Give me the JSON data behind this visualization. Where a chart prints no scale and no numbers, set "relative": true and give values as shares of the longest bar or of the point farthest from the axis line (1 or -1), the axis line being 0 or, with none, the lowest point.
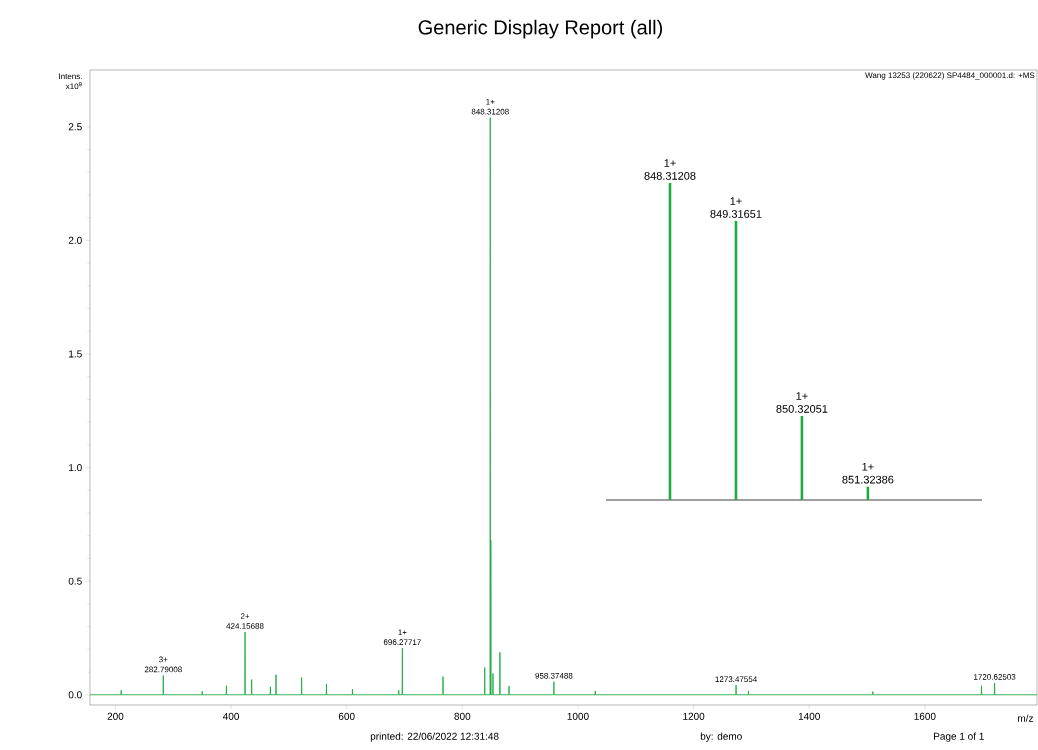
{
  "chart_data": [
    {
      "type": "line",
      "title": "Generic Display Report (all)",
      "xlabel": "m/z",
      "ylabel": "Intens. x10$^{9}$",
      "xlim": [
        156,
        1794
      ],
      "ylim": [
        -0.045,
        2.75
      ],
      "xticks": [
        200,
        400,
        600,
        800,
        1000,
        1200,
        1400,
        1600
      ],
      "yticks": [
        {
          "value": 0,
          "label": "0.0"
        },
        {
          "value": 0.5,
          "label": "0.5"
        },
        {
          "value": 1,
          "label": "1.0"
        },
        {
          "value": 1.5,
          "label": "1.5"
        },
        {
          "value": 2,
          "label": "2.0"
        },
        {
          "value": 2.5,
          "label": "2.5"
        }
      ],
      "series": [
        {
          "color": "#22aa44",
          "x": [
            156,
            209.6,
            210,
            210.4,
            282.39,
            282.79008,
            283.19,
            349.6,
            350,
            350.4,
            391.6,
            392,
            392.4,
            423.76,
            424.15688,
            424.56,
            435.2,
            435.6,
            436,
            467.6,
            468,
            468.4,
            477.3,
            477.7,
            478.1,
            521.6,
            522,
            522.4,
            564.6,
            565,
            565.4,
            609.6,
            610,
            610.4,
            689.6,
            690,
            690.4,
            695.88,
            696.27717,
            696.68,
            766.2,
            766.6,
            767,
            838.3,
            838.7,
            839.1,
            847.91,
            848.31208,
            848.71,
            848.9,
            849.3,
            849.7,
            852.6,
            853,
            853.4,
            864.6,
            865,
            865.4,
            880.4,
            880.8,
            881.2,
            957.97,
            958.37488,
            958.77,
            1029.6,
            1030,
            1030.4,
            1273.08,
            1273.47554,
            1273.88,
            1294.6,
            1295,
            1295.4,
            1509.6,
            1510,
            1510.4,
            1697.6,
            1698,
            1698.4,
            1720.23,
            1720.62503,
            1721.03,
            1794
          ],
          "values": [
            0,
            0,
            0.02,
            0,
            0,
            0.085,
            0,
            0,
            0.015,
            0,
            0,
            0.04,
            0,
            0,
            0.276,
            0,
            0,
            0.067,
            0,
            0,
            0.035,
            0,
            0,
            0.088,
            0,
            0,
            0.076,
            0,
            0,
            0.048,
            0,
            0,
            0.025,
            0,
            0,
            0.02,
            0,
            0,
            0.205,
            0,
            0,
            0.08,
            0,
            0,
            0.12,
            0,
            0,
            2.54,
            0,
            0,
            0.68,
            0,
            0,
            0.094,
            0,
            0,
            0.187,
            0,
            0,
            0.038,
            0,
            0,
            0.057,
            0,
            0,
            0.017,
            0,
            0,
            0.042,
            0,
            0,
            0.017,
            0,
            0,
            0.014,
            0,
            0,
            0.04,
            0,
            0,
            0.052,
            0,
            0
          ]
        }
      ],
      "annotations": [
        "Wang  13253  (220622)  SP4484_000001.d: +MS",
        "printed:     22/06/2022 12:31:48",
        "by:     demo",
        "Page 1 of 1",
        {
          "text": "282.79008",
          "x": 282.79008,
          "y": 0.085
        },
        {
          "text": "3+",
          "x": 282.79008,
          "y": 0.085
        },
        {
          "text": "424.15688",
          "x": 424.15688,
          "y": 0.276
        },
        {
          "text": "2+",
          "x": 424.15688,
          "y": 0.276
        },
        {
          "text": "696.27717",
          "x": 696.27717,
          "y": 0.205
        },
        {
          "text": "1+",
          "x": 696.27717,
          "y": 0.205
        },
        {
          "text": "848.31208",
          "x": 848.31208,
          "y": 2.54
        },
        {
          "text": "1+",
          "x": 848.31208,
          "y": 2.54
        },
        {
          "text": "958.37488",
          "x": 958.37488,
          "y": 0.057
        },
        {
          "text": "1273.47554",
          "x": 1273.47554,
          "y": 0.042
        },
        {
          "text": "1720.62503",
          "x": 1720.62503,
          "y": 0.052
        }
      ]
    },
    {
      "type": "bar",
      "relative": true,
      "categories": [
        null,
        null,
        null,
        null
      ],
      "series": [
        {
          "color": "#22aa44",
          "values": [
            1,
            0.88,
            0.265,
            0.042
          ]
        }
      ],
      "annotations": [
        "848.31208",
        "1+",
        "849.31651",
        "1+",
        "850.32051",
        "1+",
        "851.32386",
        "1+"
      ]
    }
  ]
}
